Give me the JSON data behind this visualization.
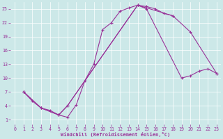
{
  "background_color": "#cce8e8",
  "line_color": "#993399",
  "grid_color": "#ffffff",
  "xlabel": "Windchill (Refroidissement éolien,°C)",
  "xlabel_color": "#993399",
  "tick_color": "#993399",
  "ylim": [
    0,
    26.5
  ],
  "xlim": [
    -0.5,
    23.5
  ],
  "yticks": [
    1,
    4,
    7,
    10,
    13,
    16,
    19,
    22,
    25
  ],
  "xticks": [
    0,
    1,
    2,
    3,
    4,
    5,
    6,
    7,
    8,
    9,
    10,
    11,
    12,
    13,
    14,
    15,
    16,
    17,
    18,
    19,
    20,
    21,
    22,
    23
  ],
  "line1_x": [
    1,
    2,
    3,
    4,
    5,
    6,
    7,
    8,
    9,
    10,
    11,
    12,
    13,
    14,
    15,
    16,
    17,
    18
  ],
  "line1_y": [
    7.0,
    5.0,
    3.5,
    3.0,
    2.0,
    1.5,
    4.2,
    9.5,
    13.0,
    20.5,
    22.0,
    24.5,
    25.2,
    25.8,
    25.5,
    25.0,
    24.0,
    23.5
  ],
  "line2_x": [
    1,
    3,
    5,
    6,
    14,
    18,
    20,
    23
  ],
  "line2_y": [
    7.0,
    3.5,
    2.0,
    4.0,
    25.8,
    23.5,
    20.0,
    11.0
  ],
  "line3_x": [
    1,
    3,
    5,
    6,
    14,
    15,
    19,
    20,
    21,
    22,
    23
  ],
  "line3_y": [
    7.0,
    3.5,
    2.0,
    4.0,
    25.8,
    25.0,
    10.0,
    10.5,
    11.5,
    12.0,
    11.0
  ]
}
